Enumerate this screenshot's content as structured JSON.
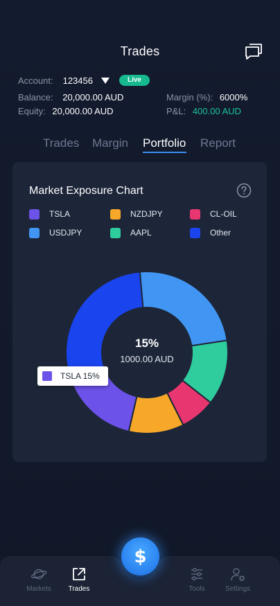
{
  "header": {
    "title": "Trades",
    "chat_icon": "chat-bubbles-icon"
  },
  "account": {
    "label": "Account:",
    "number": "123456",
    "dropdown_icon": "caret-down-icon",
    "status": "Live",
    "status_color": "#17b98f",
    "balance_label": "Balance:",
    "balance_value": "20,000.00 AUD",
    "margin_label": "Margin (%):",
    "margin_value": "6000%",
    "equity_label": "Equity:",
    "equity_value": "20,000.00 AUD",
    "pl_label": "P&L:",
    "pl_value": "400.00 AUD",
    "pl_color": "#19c49b"
  },
  "tabs": [
    {
      "label": "Trades",
      "active": false
    },
    {
      "label": "Margin",
      "active": false
    },
    {
      "label": "Portfolio",
      "active": true
    },
    {
      "label": "Report",
      "active": false
    }
  ],
  "card": {
    "title": "Market Exposure Chart",
    "help_icon": "question-circle-icon"
  },
  "chart_data": {
    "type": "pie",
    "variant": "donut",
    "title": "Market Exposure Chart",
    "legend_position": "top",
    "series": [
      {
        "name": "TSLA",
        "color": "#6c52e8",
        "value": 15
      },
      {
        "name": "NZDJPY",
        "color": "#f7a828",
        "value": 11
      },
      {
        "name": "CL-OIL",
        "color": "#e83670",
        "value": 7
      },
      {
        "name": "USDJPY",
        "color": "#4196f4",
        "value": 24
      },
      {
        "name": "AAPL",
        "color": "#2fcc9e",
        "value": 13
      },
      {
        "name": "Other",
        "color": "#1a44ee",
        "value": 30
      }
    ],
    "center_percent": "15%",
    "center_amount": "1000.00 AUD",
    "tooltip": "TSLA 15%"
  },
  "bottom_nav": {
    "items": [
      {
        "label": "Markets",
        "icon": "planet-icon",
        "active": false
      },
      {
        "label": "Trades",
        "icon": "external-link-icon",
        "active": true
      },
      {
        "label": "Tools",
        "icon": "sliders-icon",
        "active": false
      },
      {
        "label": "Settings",
        "icon": "user-gear-icon",
        "active": false
      }
    ],
    "fab_symbol": "$",
    "fab_icon": "dollar-icon"
  }
}
